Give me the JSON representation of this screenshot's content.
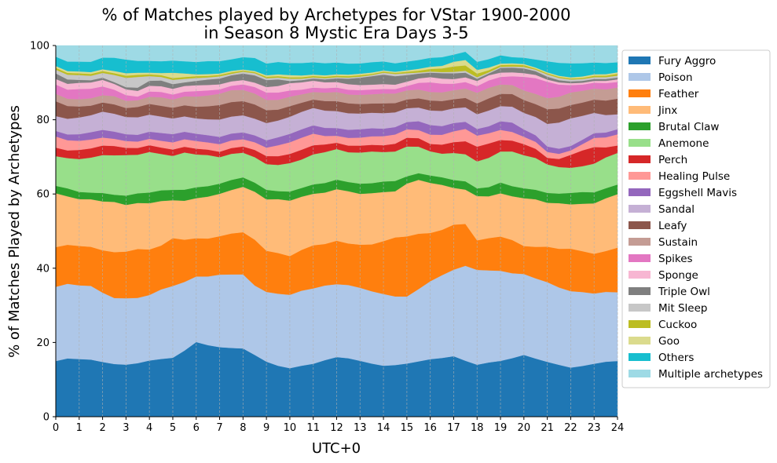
{
  "chart_data": {
    "type": "area",
    "stacked": true,
    "title": "% of Matches played by Archetypes for VStar 1900-2000",
    "subtitle": "in Season 8 Mystic Era Days 3-5",
    "xlabel": "UTC+0",
    "ylabel": "% of Matches Played by Archetypes",
    "xlim": [
      0,
      24
    ],
    "ylim": [
      0,
      100
    ],
    "xticks": [
      0,
      1,
      2,
      3,
      4,
      5,
      6,
      7,
      8,
      9,
      10,
      11,
      12,
      13,
      14,
      15,
      16,
      17,
      18,
      19,
      20,
      21,
      22,
      23,
      24
    ],
    "yticks": [
      0,
      20,
      40,
      60,
      80,
      100
    ],
    "x_grid": true,
    "legend_position": "right",
    "x": [
      0,
      0.5,
      1,
      1.5,
      2,
      2.5,
      3,
      3.5,
      4,
      4.5,
      5,
      5.5,
      6,
      6.5,
      7,
      7.5,
      8,
      8.5,
      9,
      9.5,
      10,
      10.5,
      11,
      11.5,
      12,
      12.5,
      13,
      13.5,
      14,
      14.5,
      15,
      15.5,
      16,
      16.5,
      17,
      17.5,
      18,
      18.5,
      19,
      19.5,
      20,
      20.5,
      21,
      21.5,
      22,
      22.5,
      23,
      23.5,
      24
    ],
    "series": [
      {
        "name": "Fury Aggro",
        "color": "#1f77b4",
        "values": [
          15.0,
          16.0,
          15.8,
          15.5,
          15.0,
          14.7,
          14.5,
          15.0,
          15.8,
          16.2,
          16.5,
          18.5,
          20.5,
          19.8,
          19.2,
          19.0,
          18.8,
          17.0,
          15.0,
          14.0,
          13.3,
          14.0,
          14.6,
          15.4,
          16.2,
          15.9,
          15.3,
          14.4,
          13.5,
          14.0,
          14.6,
          15.0,
          15.5,
          16.2,
          16.8,
          15.5,
          14.1,
          14.8,
          15.5,
          16.2,
          16.8,
          15.9,
          15.0,
          14.1,
          13.3,
          13.8,
          14.4,
          14.8,
          15.0
        ]
      },
      {
        "name": "Poison",
        "color": "#aec7e8",
        "values": [
          20.0,
          20.5,
          20.2,
          20.0,
          19.0,
          18.4,
          18.5,
          18.3,
          18.4,
          19.5,
          20.1,
          19.2,
          18.0,
          19.0,
          20.0,
          20.3,
          20.4,
          19.1,
          19.0,
          19.8,
          20.1,
          20.6,
          20.8,
          20.3,
          19.8,
          19.9,
          20.0,
          19.6,
          19.0,
          18.6,
          18.4,
          19.6,
          21.0,
          22.8,
          24.0,
          26.3,
          25.7,
          25.1,
          25.0,
          23.5,
          22.0,
          21.9,
          21.8,
          21.0,
          20.7,
          20.1,
          19.1,
          18.8,
          18.5
        ]
      },
      {
        "name": "Feather",
        "color": "#ff7f0e",
        "values": [
          10.7,
          10.7,
          10.8,
          10.6,
          11.6,
          12.8,
          13.0,
          13.7,
          12.8,
          12.3,
          13.4,
          11.8,
          10.5,
          10.5,
          10.6,
          11.3,
          11.6,
          12.6,
          11.2,
          11.2,
          10.6,
          11.2,
          11.9,
          11.3,
          11.8,
          11.3,
          11.8,
          12.7,
          14.0,
          16.0,
          16.5,
          15.0,
          13.0,
          12.5,
          12.5,
          11.6,
          8.0,
          8.8,
          9.5,
          9.2,
          7.6,
          8.6,
          9.7,
          10.5,
          11.5,
          11.1,
          10.8,
          11.0,
          12.0
        ]
      },
      {
        "name": "Jinx",
        "color": "#ffbb78",
        "values": [
          14.5,
          13.3,
          12.8,
          12.9,
          13.4,
          14.0,
          13.0,
          12.9,
          13.0,
          12.5,
          10.6,
          10.9,
          11.0,
          11.6,
          11.7,
          12.0,
          12.5,
          13.2,
          14.0,
          14.8,
          15.2,
          14.6,
          14.2,
          14.0,
          14.0,
          14.2,
          13.9,
          13.9,
          13.0,
          12.5,
          14.5,
          14.6,
          13.5,
          12.4,
          10.2,
          9.5,
          12.0,
          11.4,
          12.0,
          12.1,
          13.0,
          13.0,
          12.0,
          12.4,
          12.0,
          12.9,
          13.7,
          14.2,
          14.4
        ]
      },
      {
        "name": "Brutal Claw",
        "color": "#2ca02c",
        "values": [
          2.0,
          2.2,
          2.0,
          1.8,
          2.3,
          2.0,
          2.6,
          2.7,
          3.0,
          3.0,
          2.9,
          3.1,
          3.0,
          2.9,
          2.8,
          2.8,
          2.6,
          2.5,
          2.6,
          2.2,
          2.5,
          2.4,
          2.6,
          2.6,
          2.6,
          2.5,
          2.8,
          2.7,
          2.8,
          2.8,
          2.0,
          1.8,
          2.0,
          2.1,
          2.2,
          2.3,
          2.1,
          2.5,
          3.0,
          2.8,
          2.7,
          2.6,
          2.7,
          2.6,
          3.1,
          3.2,
          3.0,
          2.7,
          2.6
        ]
      },
      {
        "name": "Anemone",
        "color": "#98df8a",
        "values": [
          8.0,
          8.3,
          9.0,
          9.5,
          10.4,
          11.0,
          11.3,
          10.8,
          11.4,
          10.2,
          9.5,
          10.4,
          9.0,
          8.6,
          7.3,
          7.2,
          6.8,
          7.0,
          7.0,
          7.2,
          7.8,
          7.8,
          8.3,
          8.4,
          8.3,
          8.1,
          8.5,
          8.6,
          7.8,
          8.0,
          8.2,
          7.2,
          6.5,
          6.5,
          7.5,
          7.5,
          7.3,
          8.0,
          8.6,
          9.6,
          9.0,
          8.7,
          7.8,
          7.2,
          6.8,
          7.0,
          7.8,
          8.3,
          8.5
        ]
      },
      {
        "name": "Perch",
        "color": "#d62728",
        "values": [
          2.3,
          2.1,
          2.5,
          2.5,
          2.6,
          2.6,
          2.0,
          1.9,
          1.9,
          1.8,
          1.8,
          1.6,
          1.6,
          1.5,
          1.5,
          1.6,
          1.7,
          2.0,
          2.2,
          2.4,
          2.5,
          2.7,
          2.5,
          2.1,
          1.7,
          1.8,
          1.9,
          1.8,
          1.8,
          2.1,
          2.4,
          2.3,
          2.0,
          2.5,
          3.0,
          3.6,
          4.0,
          3.9,
          3.2,
          3.0,
          3.0,
          2.5,
          1.8,
          2.2,
          3.5,
          4.3,
          4.5,
          2.7,
          2.0
        ]
      },
      {
        "name": "Healing Pulse",
        "color": "#ff9896",
        "values": [
          3.0,
          2.8,
          2.5,
          2.4,
          2.2,
          2.0,
          1.9,
          1.8,
          1.8,
          1.9,
          2.0,
          2.1,
          2.1,
          2.0,
          2.1,
          2.1,
          2.0,
          2.1,
          2.3,
          3.0,
          3.2,
          3.3,
          3.2,
          2.3,
          1.9,
          2.1,
          2.2,
          2.3,
          2.4,
          2.5,
          2.3,
          2.2,
          2.5,
          2.7,
          3.0,
          3.4,
          3.0,
          2.8,
          2.8,
          2.4,
          2.0,
          1.9,
          1.6,
          1.4,
          1.2,
          1.7,
          2.5,
          2.7,
          3.0
        ]
      },
      {
        "name": "Eggshell Mavis",
        "color": "#9467bd",
        "values": [
          1.5,
          1.6,
          1.8,
          2.0,
          2.1,
          2.0,
          1.9,
          1.9,
          2.0,
          2.2,
          2.3,
          2.1,
          2.0,
          2.0,
          2.0,
          1.9,
          1.9,
          1.9,
          2.0,
          2.2,
          2.3,
          2.3,
          2.3,
          2.2,
          2.1,
          2.2,
          2.3,
          2.2,
          2.0,
          2.0,
          2.0,
          2.4,
          2.6,
          2.4,
          2.3,
          2.0,
          1.8,
          1.9,
          2.4,
          2.6,
          2.0,
          1.8,
          1.5,
          1.4,
          1.2,
          1.2,
          1.3,
          1.3,
          1.4
        ]
      },
      {
        "name": "Sandal",
        "color": "#c5b0d5",
        "values": [
          4.0,
          4.3,
          4.6,
          4.6,
          5.0,
          5.0,
          4.8,
          4.9,
          4.8,
          4.6,
          4.4,
          4.3,
          4.2,
          4.4,
          4.8,
          4.7,
          4.7,
          4.6,
          4.7,
          4.6,
          4.7,
          4.8,
          4.8,
          4.7,
          4.6,
          4.5,
          4.3,
          4.2,
          4.1,
          4.0,
          3.8,
          3.7,
          3.9,
          4.2,
          4.1,
          4.0,
          4.0,
          4.3,
          4.2,
          4.4,
          4.5,
          5.0,
          6.2,
          7.1,
          7.5,
          6.5,
          5.5,
          4.7,
          4.0
        ]
      },
      {
        "name": "Leafy",
        "color": "#8c564b",
        "values": [
          4.0,
          3.5,
          3.0,
          2.6,
          2.5,
          2.6,
          2.5,
          2.9,
          3.0,
          3.0,
          3.0,
          3.1,
          3.2,
          3.6,
          4.0,
          4.0,
          3.9,
          3.9,
          3.5,
          3.0,
          2.9,
          2.5,
          2.3,
          2.6,
          2.7,
          2.7,
          2.6,
          2.5,
          2.6,
          2.5,
          2.4,
          2.5,
          2.7,
          2.7,
          2.5,
          2.6,
          2.9,
          3.3,
          3.4,
          3.5,
          3.5,
          3.5,
          4.0,
          3.8,
          3.6,
          3.6,
          3.6,
          3.9,
          4.2
        ]
      },
      {
        "name": "Sustain",
        "color": "#c49c94",
        "values": [
          2.0,
          2.0,
          2.0,
          2.0,
          2.0,
          2.3,
          2.0,
          1.9,
          2.0,
          2.4,
          2.3,
          2.5,
          2.8,
          3.0,
          3.1,
          3.3,
          3.1,
          3.0,
          2.8,
          2.7,
          2.6,
          2.3,
          2.1,
          2.3,
          2.5,
          2.4,
          2.5,
          2.5,
          2.6,
          2.6,
          2.5,
          2.4,
          2.3,
          2.4,
          2.5,
          2.6,
          2.9,
          2.9,
          2.6,
          2.5,
          2.6,
          2.8,
          3.0,
          3.2,
          3.4,
          3.2,
          3.0,
          3.0,
          3.0
        ]
      },
      {
        "name": "Spikes",
        "color": "#e377c2",
        "values": [
          2.5,
          2.5,
          2.8,
          2.6,
          2.4,
          1.8,
          1.6,
          1.0,
          1.5,
          1.5,
          1.4,
          1.3,
          1.5,
          1.4,
          1.2,
          1.2,
          1.5,
          1.8,
          2.0,
          2.0,
          1.7,
          1.3,
          1.2,
          1.2,
          1.2,
          1.3,
          1.3,
          1.3,
          1.2,
          1.2,
          1.2,
          1.8,
          2.6,
          2.4,
          1.8,
          1.8,
          1.8,
          2.0,
          2.1,
          2.4,
          3.7,
          4.3,
          4.5,
          3.3,
          2.0,
          1.7,
          1.6,
          1.7,
          1.5
        ]
      },
      {
        "name": "Sponge",
        "color": "#f7b6d2",
        "values": [
          1.5,
          1.6,
          1.7,
          1.7,
          1.8,
          1.6,
          1.6,
          1.6,
          1.6,
          1.6,
          1.6,
          1.6,
          1.6,
          1.5,
          1.4,
          1.2,
          1.2,
          1.2,
          1.5,
          1.8,
          2.0,
          2.0,
          1.9,
          1.6,
          1.5,
          1.5,
          1.4,
          1.3,
          1.3,
          1.2,
          1.2,
          1.2,
          1.4,
          1.4,
          1.3,
          1.3,
          1.4,
          1.4,
          1.2,
          1.1,
          1.0,
          0.9,
          0.6,
          0.6,
          0.5,
          0.5,
          0.5,
          0.6,
          0.7
        ]
      },
      {
        "name": "Triple Owl",
        "color": "#7f7f7f",
        "values": [
          1.5,
          1.2,
          0.8,
          0.6,
          0.6,
          0.5,
          0.6,
          0.9,
          1.4,
          1.6,
          1.3,
          1.0,
          1.2,
          1.5,
          1.6,
          1.7,
          1.8,
          2.0,
          1.9,
          1.8,
          0.6,
          0.6,
          0.6,
          0.8,
          1.0,
          1.5,
          2.0,
          2.3,
          2.5,
          2.3,
          1.8,
          1.3,
          1.2,
          1.5,
          1.6,
          1.3,
          0.6,
          0.5,
          1.3,
          1.3,
          1.3,
          1.0,
          0.8,
          0.6,
          0.5,
          0.5,
          0.5,
          0.5,
          0.5
        ]
      },
      {
        "name": "Mit Sleep",
        "color": "#c7c7c7",
        "values": [
          1.0,
          1.3,
          1.3,
          1.2,
          1.3,
          2.0,
          2.6,
          3.0,
          1.3,
          1.0,
          1.2,
          1.0,
          0.8,
          0.6,
          0.6,
          0.4,
          0.5,
          0.6,
          0.5,
          0.5,
          0.6,
          0.4,
          0.3,
          0.3,
          0.3,
          0.3,
          0.3,
          0.3,
          0.5,
          0.6,
          0.5,
          0.3,
          0.3,
          0.3,
          0.4,
          0.5,
          0.4,
          0.3,
          0.3,
          0.3,
          0.4,
          0.4,
          0.6,
          0.6,
          0.5,
          0.5,
          0.5,
          0.5,
          0.5
        ]
      },
      {
        "name": "Cuckoo",
        "color": "#bcbd22",
        "values": [
          0.5,
          0.5,
          0.5,
          0.5,
          0.5,
          0.5,
          0.6,
          0.6,
          0.5,
          0.5,
          0.5,
          0.5,
          0.5,
          0.4,
          0.4,
          0.4,
          0.3,
          0.3,
          0.4,
          0.4,
          0.4,
          0.4,
          0.4,
          0.4,
          0.4,
          0.4,
          0.4,
          0.3,
          0.3,
          0.3,
          0.4,
          0.5,
          0.7,
          1.0,
          1.5,
          1.5,
          1.0,
          0.6,
          0.5,
          0.5,
          0.5,
          0.3,
          0.3,
          0.3,
          0.3,
          0.3,
          0.4,
          0.4,
          0.5
        ]
      },
      {
        "name": "Goo",
        "color": "#dbdb8d",
        "values": [
          0.5,
          0.5,
          0.5,
          0.5,
          0.5,
          0.6,
          0.7,
          0.6,
          0.5,
          0.6,
          1.5,
          1.0,
          0.5,
          0.5,
          0.4,
          0.4,
          0.3,
          0.3,
          0.4,
          0.5,
          0.6,
          0.5,
          0.4,
          0.4,
          0.4,
          0.4,
          0.4,
          0.4,
          0.3,
          0.3,
          0.4,
          0.5,
          0.6,
          0.7,
          1.3,
          1.5,
          1.0,
          0.7,
          0.4,
          0.4,
          0.3,
          0.3,
          0.3,
          0.3,
          0.3,
          0.4,
          0.4,
          0.4,
          0.4
        ]
      },
      {
        "name": "Others",
        "color": "#17becf",
        "values": [
          2.5,
          2.6,
          2.7,
          2.8,
          3.2,
          3.7,
          3.8,
          3.3,
          3.3,
          3.3,
          3.4,
          3.4,
          3.4,
          3.6,
          3.4,
          3.2,
          3.4,
          3.6,
          3.2,
          3.4,
          3.3,
          3.4,
          3.4,
          3.3,
          3.2,
          3.0,
          2.8,
          2.8,
          2.4,
          2.3,
          2.4,
          2.4,
          2.4,
          2.4,
          2.0,
          2.3,
          2.2,
          2.3,
          2.3,
          1.7,
          1.7,
          2.2,
          3.0,
          3.5,
          3.8,
          3.6,
          3.2,
          3.0,
          2.7
        ]
      },
      {
        "name": "Multiple archetypes",
        "color": "#9edae5",
        "values": [
          3.0,
          4.4,
          4.4,
          4.4,
          3.3,
          3.4,
          3.9,
          4.3,
          4.3,
          4.4,
          4.2,
          4.4,
          4.5,
          4.3,
          4.3,
          3.8,
          3.2,
          3.4,
          4.9,
          4.5,
          4.8,
          4.8,
          4.6,
          4.8,
          4.6,
          4.9,
          4.9,
          4.5,
          4.2,
          4.8,
          4.4,
          3.9,
          3.3,
          3.2,
          2.5,
          1.7,
          4.4,
          3.7,
          2.7,
          3.2,
          3.3,
          3.8,
          4.3,
          4.7,
          4.8,
          4.8,
          4.6,
          4.7,
          4.5
        ]
      }
    ]
  }
}
